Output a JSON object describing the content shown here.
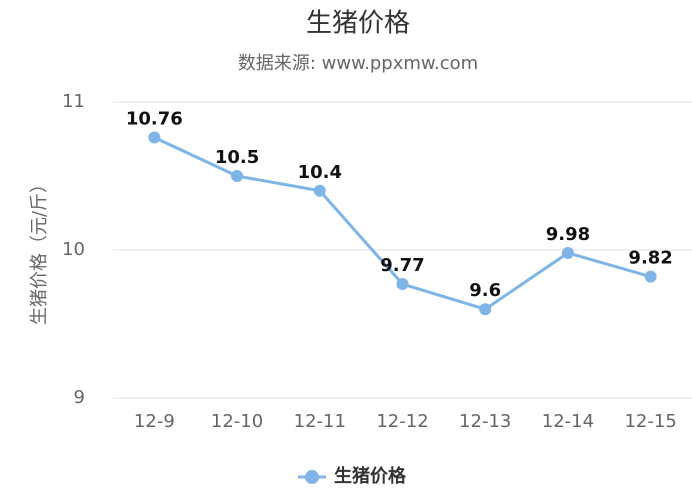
{
  "chart_data": {
    "type": "line",
    "title": "生猪价格",
    "subtitle": "数据来源: www.ppxmw.com",
    "y_label": "生猪价格（元/斤）",
    "categories": [
      "12-9",
      "12-10",
      "12-11",
      "12-12",
      "12-13",
      "12-14",
      "12-15"
    ],
    "series": [
      {
        "name": "生猪价格",
        "color": "#7eb4e6",
        "values": [
          10.76,
          10.5,
          10.4,
          9.77,
          9.6,
          9.98,
          9.82
        ]
      }
    ],
    "ylim": [
      9,
      11
    ],
    "yticks": [
      9,
      10,
      11
    ],
    "grid": true,
    "legend": "bottom"
  }
}
